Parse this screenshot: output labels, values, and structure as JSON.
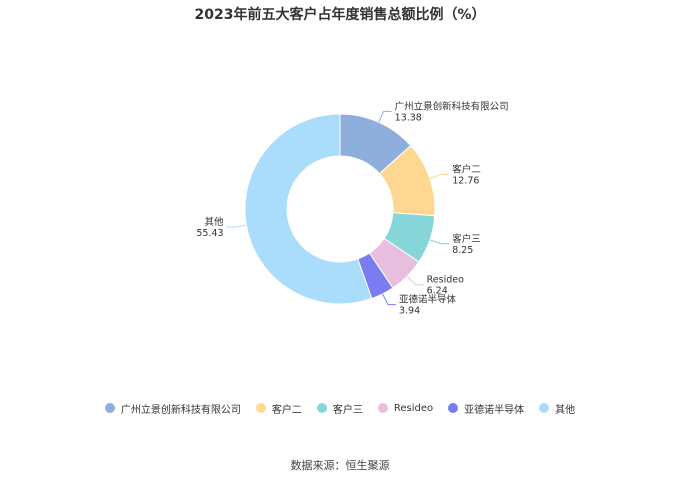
{
  "chart_data": {
    "type": "pie",
    "title": "2023年前五大客户占年度销售总额比例（%）",
    "donut": true,
    "slices": [
      {
        "name": "广州立景创新科技有限公司",
        "value": 13.38,
        "color": "#8eaedc"
      },
      {
        "name": "客户二",
        "value": 12.76,
        "color": "#fed893"
      },
      {
        "name": "客户三",
        "value": 8.25,
        "color": "#86d5d8"
      },
      {
        "name": "Resideo",
        "value": 6.24,
        "color": "#e8bede"
      },
      {
        "name": "亚德诺半导体",
        "value": 3.94,
        "color": "#7a7cf0"
      },
      {
        "name": "其他",
        "value": 55.43,
        "color": "#a9ddfb"
      }
    ],
    "legend_position": "bottom"
  },
  "footer": {
    "source": "数据来源：恒生聚源"
  }
}
